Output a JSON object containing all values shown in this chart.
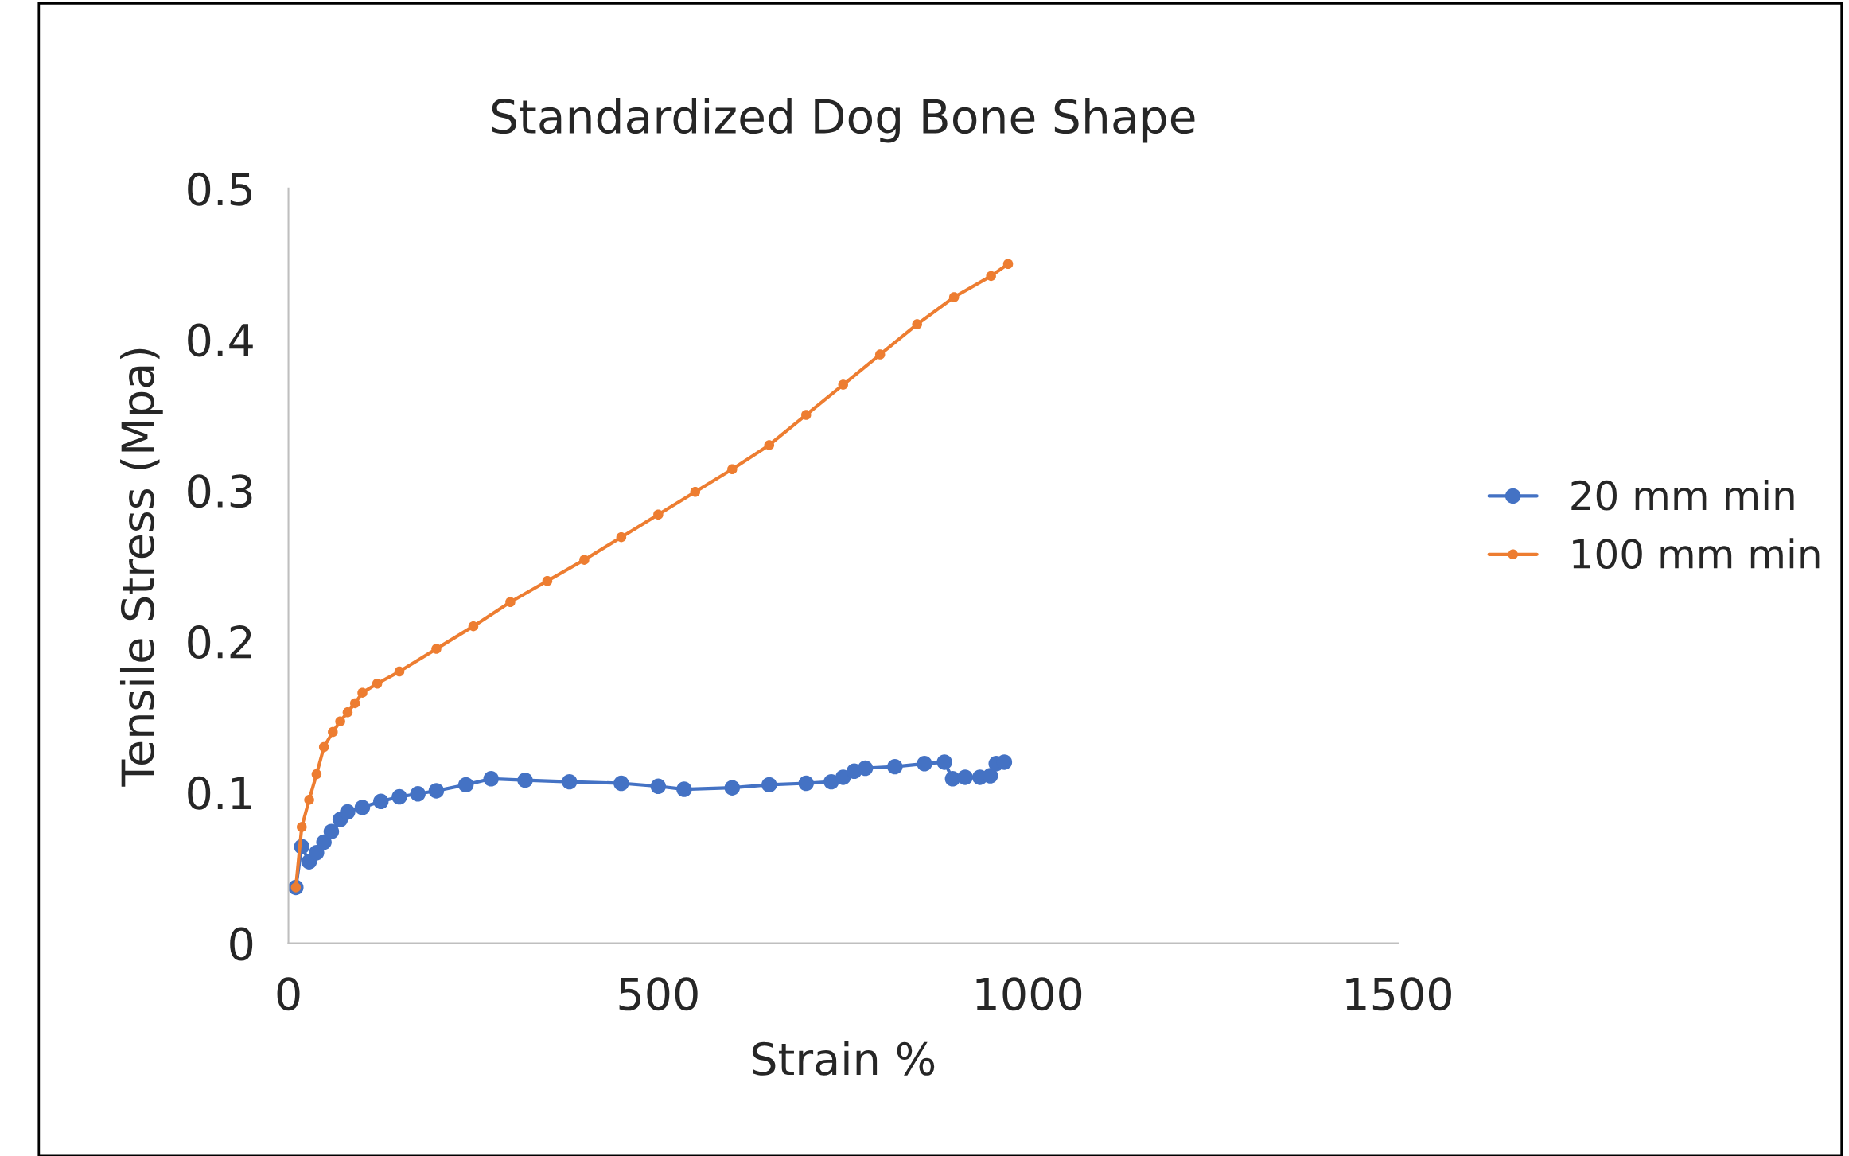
{
  "chart_data": {
    "type": "line",
    "title": "Standardized Dog Bone Shape",
    "xlabel": "Strain %",
    "ylabel": "Tensile Stress (Mpa)",
    "xlim": [
      0,
      1500
    ],
    "xticks": [
      0,
      500,
      1000,
      1500
    ],
    "ylim": [
      0,
      0.5
    ],
    "yticks": [
      0,
      0.1,
      0.2,
      0.3,
      0.4,
      0.5
    ],
    "grid": false,
    "legend": "right",
    "marker": "circle",
    "line_style": "solid",
    "series": [
      {
        "name": "20 mm min",
        "color": "#4472c4",
        "x": [
          10,
          18,
          28,
          38,
          48,
          58,
          70,
          80,
          100,
          125,
          150,
          175,
          200,
          240,
          274,
          320,
          380,
          450,
          500,
          535,
          600,
          650,
          700,
          734,
          750,
          765,
          780,
          820,
          860,
          887,
          898,
          915,
          935,
          949,
          957,
          968
        ],
        "values": [
          0.037,
          0.064,
          0.054,
          0.06,
          0.067,
          0.074,
          0.082,
          0.087,
          0.09,
          0.094,
          0.097,
          0.099,
          0.101,
          0.105,
          0.109,
          0.108,
          0.107,
          0.106,
          0.104,
          0.102,
          0.103,
          0.105,
          0.106,
          0.107,
          0.11,
          0.114,
          0.116,
          0.117,
          0.119,
          0.12,
          0.109,
          0.11,
          0.11,
          0.111,
          0.119,
          0.12
        ]
      },
      {
        "name": "100 mm min",
        "color": "#ed7d31",
        "x": [
          10,
          18,
          28,
          38,
          48,
          60,
          70,
          80,
          90,
          100,
          120,
          150,
          200,
          250,
          300,
          350,
          400,
          450,
          500,
          550,
          600,
          650,
          700,
          750,
          800,
          850,
          900,
          950,
          973
        ],
        "values": [
          0.037,
          0.077,
          0.095,
          0.112,
          0.13,
          0.14,
          0.147,
          0.153,
          0.159,
          0.166,
          0.172,
          0.18,
          0.195,
          0.21,
          0.226,
          0.24,
          0.254,
          0.269,
          0.284,
          0.299,
          0.314,
          0.33,
          0.35,
          0.37,
          0.39,
          0.41,
          0.428,
          0.442,
          0.45
        ]
      }
    ]
  }
}
